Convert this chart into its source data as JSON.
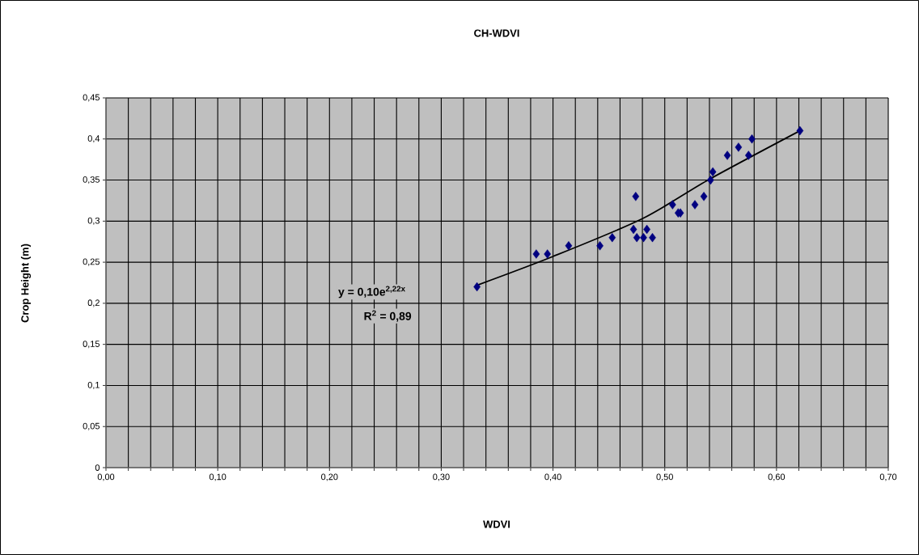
{
  "chart_data": {
    "type": "scatter",
    "title": "CH-WDVI",
    "xlabel": "WDVI",
    "ylabel": "Crop Height (m)",
    "xlim": [
      0,
      0.7
    ],
    "ylim": [
      0,
      0.45
    ],
    "xticks": [
      {
        "value": 0,
        "label": "0,00"
      },
      {
        "value": 0.02,
        "label": null
      },
      {
        "value": 0.04,
        "label": null
      },
      {
        "value": 0.06,
        "label": null
      },
      {
        "value": 0.08,
        "label": null
      },
      {
        "value": 0.1,
        "label": "0,10"
      },
      {
        "value": 0.12,
        "label": null
      },
      {
        "value": 0.14,
        "label": null
      },
      {
        "value": 0.16,
        "label": null
      },
      {
        "value": 0.18,
        "label": null
      },
      {
        "value": 0.2,
        "label": "0,20"
      },
      {
        "value": 0.22,
        "label": null
      },
      {
        "value": 0.24,
        "label": null
      },
      {
        "value": 0.26,
        "label": null
      },
      {
        "value": 0.28,
        "label": null
      },
      {
        "value": 0.3,
        "label": "0,30"
      },
      {
        "value": 0.32,
        "label": null
      },
      {
        "value": 0.34,
        "label": null
      },
      {
        "value": 0.36,
        "label": null
      },
      {
        "value": 0.38,
        "label": null
      },
      {
        "value": 0.4,
        "label": "0,40"
      },
      {
        "value": 0.42,
        "label": null
      },
      {
        "value": 0.44,
        "label": null
      },
      {
        "value": 0.46,
        "label": null
      },
      {
        "value": 0.48,
        "label": null
      },
      {
        "value": 0.5,
        "label": "0,50"
      },
      {
        "value": 0.52,
        "label": null
      },
      {
        "value": 0.54,
        "label": null
      },
      {
        "value": 0.56,
        "label": null
      },
      {
        "value": 0.58,
        "label": null
      },
      {
        "value": 0.6,
        "label": "0,60"
      },
      {
        "value": 0.62,
        "label": null
      },
      {
        "value": 0.64,
        "label": null
      },
      {
        "value": 0.66,
        "label": null
      },
      {
        "value": 0.68,
        "label": null
      },
      {
        "value": 0.7,
        "label": "0,70"
      }
    ],
    "yticks": [
      {
        "value": 0,
        "label": "0"
      },
      {
        "value": 0.05,
        "label": "0,05"
      },
      {
        "value": 0.1,
        "label": "0,1"
      },
      {
        "value": 0.15,
        "label": "0,15"
      },
      {
        "value": 0.2,
        "label": "0,2"
      },
      {
        "value": 0.25,
        "label": "0,25"
      },
      {
        "value": 0.3,
        "label": "0,3"
      },
      {
        "value": 0.35,
        "label": "0,35"
      },
      {
        "value": 0.4,
        "label": "0,4"
      },
      {
        "value": 0.45,
        "label": "0,45"
      }
    ],
    "grid": true,
    "marker": "diamond",
    "series": [
      {
        "color": "#000080",
        "x": [
          0.332,
          0.385,
          0.395,
          0.414,
          0.442,
          0.453,
          0.474,
          0.472,
          0.475,
          0.481,
          0.484,
          0.489,
          0.507,
          0.512,
          0.514,
          0.527,
          0.535,
          0.541,
          0.543,
          0.556,
          0.566,
          0.575,
          0.578,
          0.621
        ],
        "values": [
          0.22,
          0.26,
          0.26,
          0.27,
          0.27,
          0.28,
          0.33,
          0.29,
          0.28,
          0.28,
          0.29,
          0.28,
          0.32,
          0.31,
          0.31,
          0.32,
          0.33,
          0.35,
          0.36,
          0.38,
          0.39,
          0.38,
          0.4,
          0.41
        ]
      },
      {
        "type": "line",
        "color": "#000000",
        "marker": "none",
        "line_style": "solid",
        "x": [
          0.332,
          0.4,
          0.48,
          0.54,
          0.621
        ],
        "values": [
          0.222,
          0.257,
          0.303,
          0.351,
          0.41
        ]
      }
    ],
    "annotations": [
      "**y = 0,10e$^{2,22x}$**",
      "**R$^{2}$ = 0,89**"
    ]
  }
}
